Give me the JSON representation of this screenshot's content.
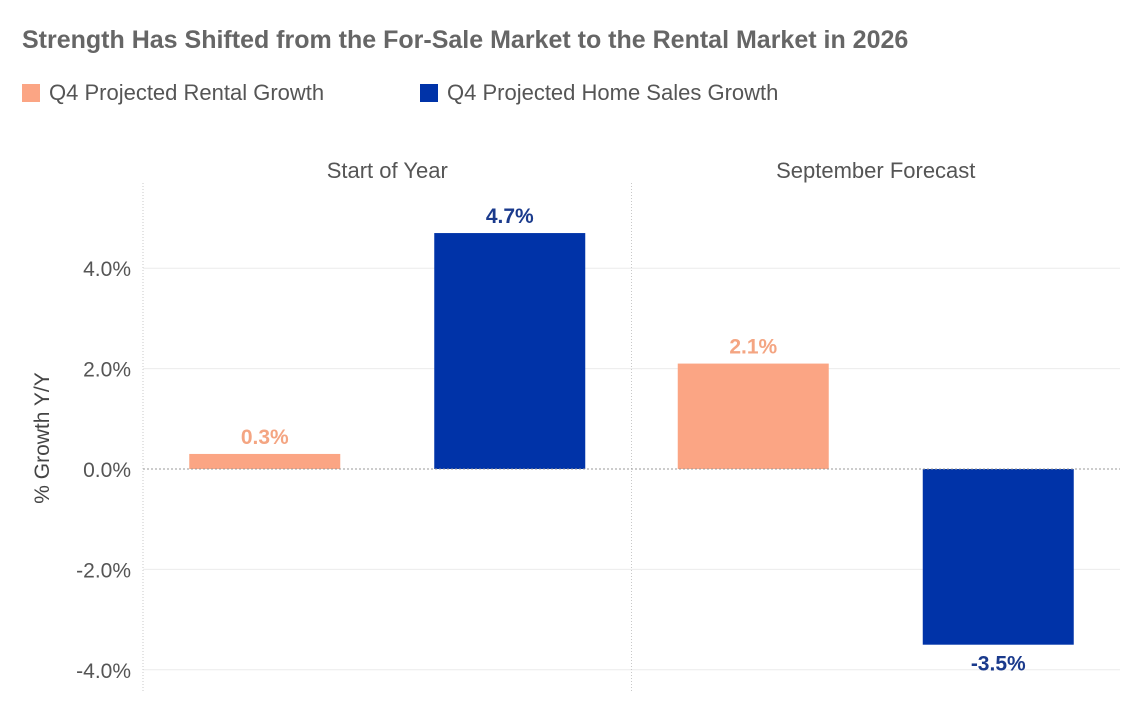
{
  "chart_data": {
    "type": "bar",
    "title": "Strength Has Shifted from the For-Sale Market to the Rental Market in 2026",
    "ylabel": "% Growth Y/Y",
    "ylim": [
      -4.0,
      5.0
    ],
    "yticks": [
      "4.0%",
      "2.0%",
      "0.0%",
      "-2.0%",
      "-4.0%"
    ],
    "ytick_values": [
      4.0,
      2.0,
      0.0,
      -2.0,
      -4.0
    ],
    "legend_position": "top-left",
    "grid": true,
    "categories": [
      "Start of Year",
      "September Forecast"
    ],
    "series": [
      {
        "name": "Q4 Projected Rental Growth",
        "color": "#FBA584",
        "values": [
          0.3,
          2.1
        ],
        "labels": [
          "0.3%",
          "2.1%"
        ]
      },
      {
        "name": "Q4 Projected Home Sales Growth",
        "color": "#0033A8",
        "values": [
          4.7,
          -3.5
        ],
        "labels": [
          "4.7%",
          "-3.5%"
        ]
      }
    ],
    "label_colors": [
      "#F4A582",
      "#1A3A8C"
    ]
  }
}
